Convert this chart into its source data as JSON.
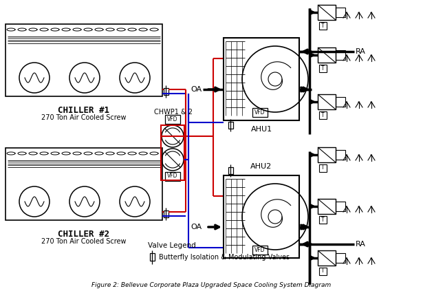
{
  "title": "Figure 2: Bellevue Corporate Plaza Upgraded Space Cooling System Diagram",
  "bg_color": "#ffffff",
  "line_color": "#000000",
  "red_color": "#cc0000",
  "blue_color": "#0000cc",
  "chiller1_label": "CHILLER #1",
  "chiller1_sub": "270 Ton Air Cooled Screw",
  "chiller2_label": "CHILLER #2",
  "chiller2_sub": "270 Ton Air Cooled Screw",
  "chwp_label": "CHWP1 & 2",
  "ahu1_label": "AHU1",
  "ahu2_label": "AHU2",
  "oa_label": "OA",
  "ra_label": "RA",
  "vfd_label": "VFD",
  "valve_legend_title": "Valve Legend",
  "valve_legend_desc": "Butterfly Isolation & Modulating Valves"
}
